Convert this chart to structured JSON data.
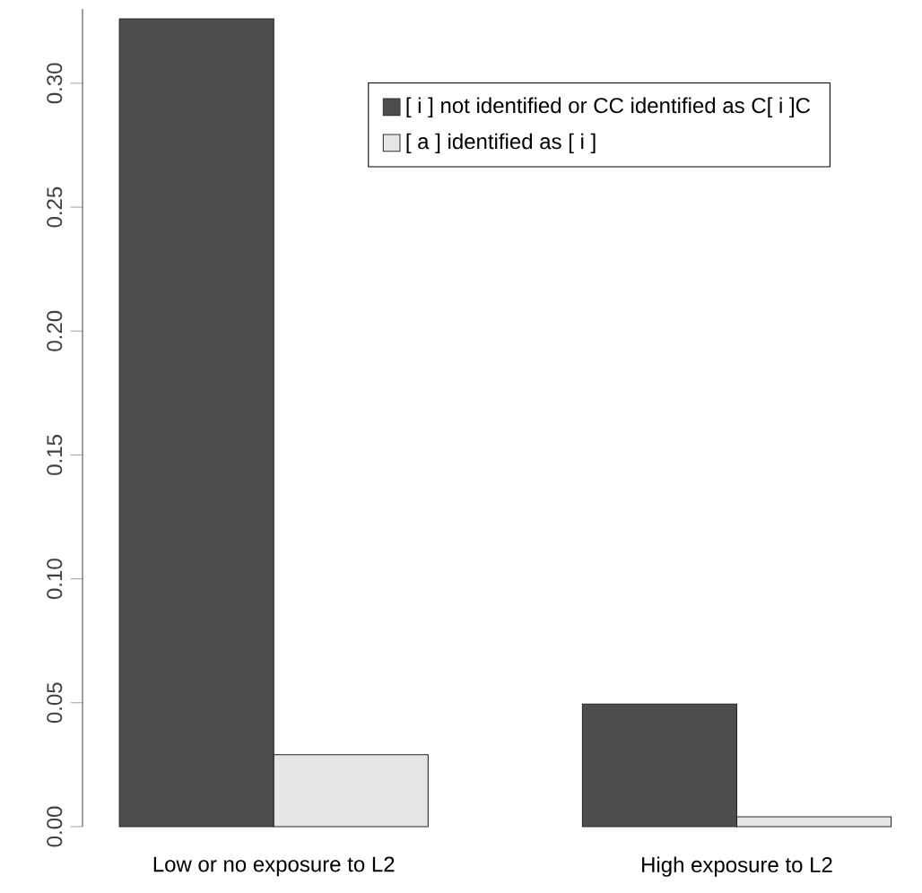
{
  "chart_data": {
    "type": "bar",
    "categories": [
      "Low or no exposure to L2",
      "High exposure to L2"
    ],
    "series": [
      {
        "name": "[ i ] not identified or CC identified as C[ i ]C",
        "color": "#4d4d4d",
        "values": [
          0.326,
          0.0495
        ]
      },
      {
        "name": "[ a ] identified as [ i ]",
        "color": "#e6e6e6",
        "values": [
          0.029,
          0.004
        ]
      }
    ],
    "ylim": [
      0,
      0.33
    ],
    "yticks": [
      {
        "value": 0,
        "label": "0.00"
      },
      {
        "value": 0.05,
        "label": "0.05"
      },
      {
        "value": 0.1,
        "label": "0.10"
      },
      {
        "value": 0.15,
        "label": "0.15"
      },
      {
        "value": 0.2,
        "label": "0.20"
      },
      {
        "value": 0.25,
        "label": "0.25"
      },
      {
        "value": 0.3,
        "label": "0.30"
      }
    ],
    "legend": "top right"
  }
}
